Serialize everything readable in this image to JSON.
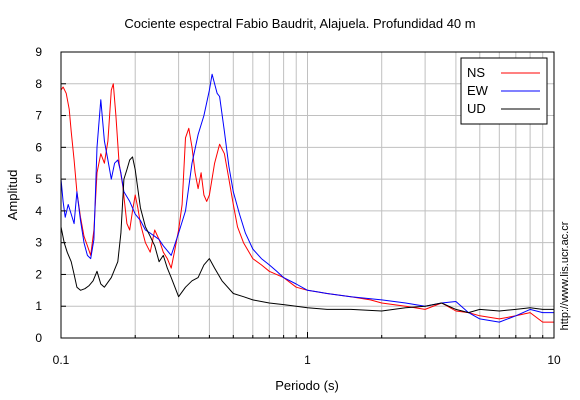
{
  "chart_data": {
    "type": "line",
    "title": "Cociente espectral Fabio Baudrit, Alajuela. Profundidad 40 m",
    "xlabel": "Periodo (s)",
    "ylabel": "Amplitud",
    "xscale": "log",
    "xlim": [
      0.1,
      10
    ],
    "ylim": [
      0,
      9
    ],
    "xticks": [
      0.1,
      1,
      10
    ],
    "xtick_labels": [
      "0.1",
      "1",
      "10"
    ],
    "yticks": [
      0,
      1,
      2,
      3,
      4,
      5,
      6,
      7,
      8,
      9
    ],
    "grid": true,
    "legend": "top-right",
    "side_text": "http://www.lis.ucr.ac.cr",
    "series": [
      {
        "name": "NS",
        "color": "#ff0000",
        "x": [
          0.1,
          0.102,
          0.105,
          0.108,
          0.11,
          0.113,
          0.116,
          0.12,
          0.124,
          0.128,
          0.132,
          0.136,
          0.14,
          0.145,
          0.15,
          0.155,
          0.16,
          0.163,
          0.167,
          0.172,
          0.178,
          0.185,
          0.19,
          0.195,
          0.2,
          0.205,
          0.21,
          0.22,
          0.23,
          0.24,
          0.25,
          0.26,
          0.27,
          0.28,
          0.29,
          0.3,
          0.31,
          0.32,
          0.33,
          0.34,
          0.35,
          0.36,
          0.37,
          0.38,
          0.39,
          0.4,
          0.42,
          0.44,
          0.46,
          0.48,
          0.5,
          0.52,
          0.55,
          0.6,
          0.65,
          0.7,
          0.8,
          0.9,
          1.0,
          1.2,
          1.5,
          1.8,
          2.0,
          2.5,
          3.0,
          3.5,
          4.0,
          4.5,
          5.0,
          6.0,
          7.0,
          8.0,
          9.0,
          10.0
        ],
        "y": [
          7.8,
          7.9,
          7.7,
          7.2,
          6.5,
          5.6,
          4.6,
          3.8,
          3.2,
          2.9,
          2.6,
          3.4,
          5.2,
          5.8,
          5.5,
          6.2,
          7.8,
          8.0,
          7.0,
          5.5,
          4.8,
          3.6,
          3.4,
          4.0,
          4.5,
          4.1,
          3.6,
          3.0,
          2.7,
          3.4,
          3.1,
          2.7,
          2.5,
          2.2,
          2.8,
          3.4,
          4.2,
          6.3,
          6.6,
          6.0,
          5.2,
          4.7,
          5.2,
          4.5,
          4.3,
          4.5,
          5.5,
          6.1,
          5.8,
          5.0,
          4.2,
          3.5,
          3.0,
          2.5,
          2.3,
          2.1,
          1.9,
          1.6,
          1.5,
          1.4,
          1.3,
          1.2,
          1.1,
          1.0,
          0.9,
          1.1,
          0.85,
          0.8,
          0.7,
          0.6,
          0.7,
          0.8,
          0.5,
          0.5
        ]
      },
      {
        "name": "EW",
        "color": "#0000ff",
        "x": [
          0.1,
          0.102,
          0.104,
          0.107,
          0.11,
          0.113,
          0.116,
          0.12,
          0.124,
          0.128,
          0.132,
          0.136,
          0.14,
          0.145,
          0.15,
          0.155,
          0.16,
          0.165,
          0.17,
          0.175,
          0.18,
          0.19,
          0.2,
          0.21,
          0.22,
          0.23,
          0.24,
          0.25,
          0.26,
          0.28,
          0.3,
          0.32,
          0.34,
          0.36,
          0.38,
          0.4,
          0.41,
          0.42,
          0.43,
          0.44,
          0.46,
          0.48,
          0.5,
          0.53,
          0.56,
          0.6,
          0.65,
          0.7,
          0.75,
          0.8,
          0.9,
          1.0,
          1.1,
          1.2,
          1.5,
          2.0,
          2.5,
          3.0,
          3.5,
          4.0,
          4.5,
          5.0,
          6.0,
          7.0,
          8.0,
          9.0,
          10.0
        ],
        "y": [
          5.0,
          4.3,
          3.8,
          4.2,
          3.9,
          3.6,
          4.6,
          3.7,
          3.0,
          2.6,
          2.5,
          3.1,
          6.0,
          7.5,
          6.2,
          5.6,
          5.0,
          5.5,
          5.6,
          5.2,
          4.6,
          4.3,
          3.9,
          3.7,
          3.4,
          3.3,
          3.2,
          3.1,
          2.9,
          2.6,
          3.3,
          4.0,
          5.5,
          6.4,
          7.0,
          7.8,
          8.3,
          8.0,
          7.7,
          7.6,
          6.5,
          5.4,
          4.6,
          3.9,
          3.3,
          2.8,
          2.5,
          2.3,
          2.1,
          1.9,
          1.7,
          1.5,
          1.45,
          1.4,
          1.3,
          1.2,
          1.1,
          1.0,
          1.1,
          1.15,
          0.8,
          0.6,
          0.5,
          0.7,
          0.9,
          0.8,
          0.8
        ]
      },
      {
        "name": "UD",
        "color": "#000000",
        "x": [
          0.1,
          0.103,
          0.106,
          0.11,
          0.113,
          0.116,
          0.12,
          0.125,
          0.13,
          0.135,
          0.14,
          0.145,
          0.15,
          0.16,
          0.17,
          0.175,
          0.18,
          0.185,
          0.19,
          0.195,
          0.2,
          0.21,
          0.22,
          0.23,
          0.24,
          0.25,
          0.26,
          0.27,
          0.28,
          0.3,
          0.32,
          0.34,
          0.36,
          0.38,
          0.4,
          0.42,
          0.45,
          0.5,
          0.55,
          0.6,
          0.7,
          0.8,
          0.9,
          1.0,
          1.2,
          1.5,
          2.0,
          2.5,
          3.0,
          3.5,
          4.0,
          4.5,
          5.0,
          6.0,
          7.0,
          8.0,
          9.0,
          10.0
        ],
        "y": [
          3.5,
          3.0,
          2.7,
          2.4,
          2.0,
          1.6,
          1.5,
          1.55,
          1.65,
          1.8,
          2.1,
          1.7,
          1.6,
          1.9,
          2.4,
          3.3,
          5.0,
          5.3,
          5.6,
          5.7,
          5.3,
          4.1,
          3.5,
          3.2,
          2.9,
          2.4,
          2.6,
          2.2,
          1.9,
          1.3,
          1.6,
          1.8,
          1.9,
          2.3,
          2.5,
          2.2,
          1.8,
          1.4,
          1.3,
          1.2,
          1.1,
          1.05,
          1.0,
          0.95,
          0.9,
          0.9,
          0.85,
          0.95,
          1.0,
          1.1,
          0.9,
          0.8,
          0.9,
          0.85,
          0.9,
          0.95,
          0.9,
          0.9
        ]
      }
    ]
  }
}
